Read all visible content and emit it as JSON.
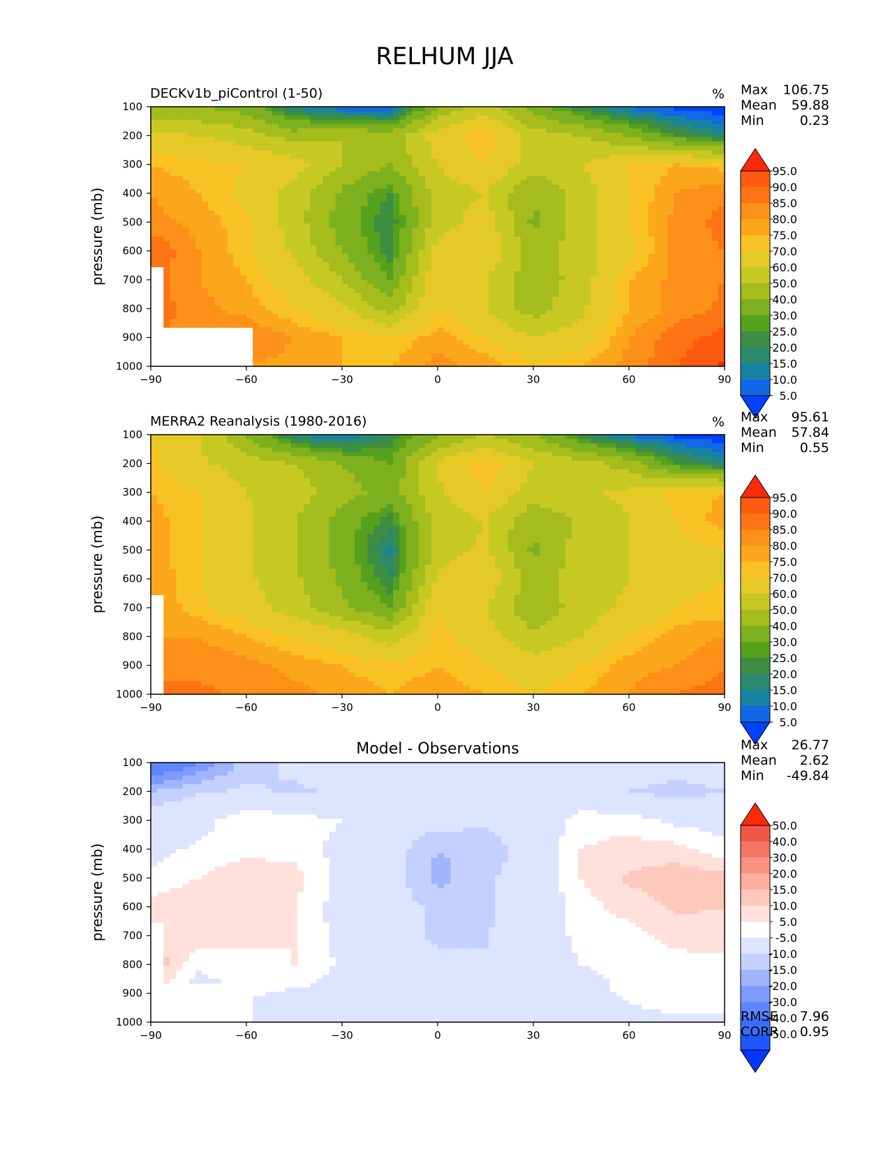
{
  "figure_title": "RELHUM JJA",
  "colors": {
    "abs_levels": [
      "#0042ff",
      "#1268e6",
      "#1783a2",
      "#2b8a6d",
      "#3d8d42",
      "#55a11e",
      "#7cb01f",
      "#a4bc1c",
      "#c7c923",
      "#e5c927",
      "#f8c223",
      "#fca71b",
      "#fc9018",
      "#fd7414",
      "#fe5b11",
      "#ff2a0a"
    ],
    "diff_levels": [
      "#0038ff",
      "#1e57ff",
      "#3a6eff",
      "#5d86ff",
      "#7c9bff",
      "#a0b4ff",
      "#c4d0ff",
      "#dde4ff",
      "#ffffff",
      "#ffe0da",
      "#fec8bc",
      "#fcae9f",
      "#f89281",
      "#f37563",
      "#ee5746",
      "#ff2a0a"
    ]
  },
  "panels": [
    {
      "title_left": "DECKv1b_piControl (1-50)",
      "title_center": "",
      "unit": "%",
      "stats": [
        {
          "label": "Max",
          "value": "106.75"
        },
        {
          "label": "Mean",
          "value": "59.88"
        },
        {
          "label": "Min",
          "value": "0.23"
        }
      ],
      "metrics": [],
      "colorbar_labels": [
        "95.0",
        "90.0",
        "85.0",
        "80.0",
        "75.0",
        "70.0",
        "60.0",
        "50.0",
        "40.0",
        "30.0",
        "25.0",
        "20.0",
        "15.0",
        "10.0",
        "5.0"
      ]
    },
    {
      "title_left": "MERRA2 Reanalysis (1980-2016)",
      "title_center": "",
      "unit": "%",
      "stats": [
        {
          "label": "Max",
          "value": "95.61"
        },
        {
          "label": "Mean",
          "value": "57.84"
        },
        {
          "label": "Min",
          "value": "0.55"
        }
      ],
      "metrics": [],
      "colorbar_labels": [
        "95.0",
        "90.0",
        "85.0",
        "80.0",
        "75.0",
        "70.0",
        "60.0",
        "50.0",
        "40.0",
        "30.0",
        "25.0",
        "20.0",
        "15.0",
        "10.0",
        "5.0"
      ]
    },
    {
      "title_left": "",
      "title_center": "Model - Observations",
      "unit": "",
      "stats": [
        {
          "label": "Max",
          "value": "26.77"
        },
        {
          "label": "Mean",
          "value": "2.62"
        },
        {
          "label": "Min",
          "value": "-49.84"
        }
      ],
      "metrics": [
        {
          "label": "RMSE",
          "value": "7.96"
        },
        {
          "label": "CORR",
          "value": "0.95"
        }
      ],
      "colorbar_labels": [
        "50.0",
        "40.0",
        "30.0",
        "20.0",
        "15.0",
        "10.0",
        "5.0",
        "-5.0",
        "-10.0",
        "-15.0",
        "-20.0",
        "-30.0",
        "-40.0",
        "-50.0"
      ]
    }
  ],
  "chart_data": [
    {
      "type": "heatmap",
      "title": "DECKv1b_piControl (1-50)",
      "ylabel": "pressure (mb)",
      "xlabel": "",
      "x_ticks": [
        "−90",
        "−60",
        "−30",
        "0",
        "30",
        "60",
        "90"
      ],
      "y_ticks": [
        "100",
        "200",
        "300",
        "400",
        "500",
        "600",
        "700",
        "800",
        "900",
        "1000"
      ],
      "xlim": [
        -90,
        90
      ],
      "ylim": [
        1000,
        100
      ],
      "levels": [
        5,
        10,
        15,
        20,
        25,
        30,
        40,
        50,
        60,
        70,
        75,
        80,
        85,
        90,
        95
      ],
      "extend": "both",
      "x": [
        -90,
        -75,
        -60,
        -45,
        -30,
        -15,
        0,
        15,
        30,
        45,
        60,
        75,
        90
      ],
      "y": [
        100,
        200,
        300,
        400,
        500,
        600,
        700,
        800,
        900,
        1000
      ],
      "z": [
        [
          40,
          40,
          35,
          15,
          5,
          3,
          40,
          55,
          35,
          20,
          8,
          3,
          1
        ],
        [
          62,
          60,
          55,
          45,
          50,
          45,
          65,
          75,
          55,
          50,
          40,
          25,
          15
        ],
        [
          75,
          72,
          70,
          65,
          50,
          40,
          60,
          70,
          55,
          60,
          70,
          75,
          73
        ],
        [
          80,
          75,
          68,
          55,
          38,
          25,
          55,
          60,
          40,
          55,
          70,
          80,
          84
        ],
        [
          82,
          78,
          72,
          55,
          35,
          20,
          55,
          65,
          38,
          55,
          70,
          82,
          87
        ],
        [
          90,
          80,
          72,
          58,
          40,
          22,
          65,
          70,
          45,
          55,
          68,
          82,
          85
        ],
        [
          88,
          80,
          75,
          65,
          50,
          30,
          70,
          60,
          42,
          55,
          75,
          82,
          85
        ],
        [
          88,
          82,
          78,
          70,
          62,
          45,
          70,
          60,
          45,
          58,
          75,
          82,
          86
        ],
        [
          null,
          84,
          85,
          80,
          75,
          70,
          78,
          70,
          60,
          65,
          80,
          88,
          92
        ],
        [
          null,
          null,
          80,
          78,
          75,
          75,
          82,
          78,
          72,
          75,
          82,
          90,
          96
        ]
      ],
      "masked_region": "Antarctic terrain below ~650 mb south of about 85S and below ~870 mb south of about 57S"
    },
    {
      "type": "heatmap",
      "title": "MERRA2 Reanalysis (1980-2016)",
      "ylabel": "pressure (mb)",
      "xlabel": "",
      "x_ticks": [
        "−90",
        "−60",
        "−30",
        "0",
        "30",
        "60",
        "90"
      ],
      "y_ticks": [
        "100",
        "200",
        "300",
        "400",
        "500",
        "600",
        "700",
        "800",
        "900",
        "1000"
      ],
      "xlim": [
        -90,
        90
      ],
      "ylim": [
        1000,
        100
      ],
      "levels": [
        5,
        10,
        15,
        20,
        25,
        30,
        40,
        50,
        60,
        70,
        75,
        80,
        85,
        90,
        95
      ],
      "extend": "both",
      "x": [
        -90,
        -75,
        -60,
        -45,
        -30,
        -15,
        0,
        15,
        30,
        45,
        60,
        75,
        90
      ],
      "y": [
        100,
        200,
        300,
        400,
        500,
        600,
        700,
        800,
        900,
        1000
      ],
      "z": [
        [
          70,
          60,
          40,
          15,
          8,
          20,
          38,
          50,
          40,
          20,
          8,
          3,
          1
        ],
        [
          72,
          62,
          55,
          50,
          40,
          30,
          62,
          75,
          60,
          55,
          45,
          25,
          15
        ],
        [
          75,
          70,
          60,
          55,
          45,
          35,
          58,
          70,
          55,
          58,
          62,
          72,
          75
        ],
        [
          78,
          70,
          62,
          50,
          35,
          22,
          55,
          60,
          42,
          52,
          60,
          70,
          78
        ],
        [
          78,
          70,
          62,
          50,
          35,
          14,
          55,
          62,
          38,
          55,
          60,
          68,
          70
        ],
        [
          80,
          70,
          62,
          52,
          38,
          20,
          62,
          68,
          45,
          55,
          60,
          68,
          70
        ],
        [
          80,
          72,
          65,
          55,
          42,
          30,
          70,
          60,
          42,
          55,
          62,
          70,
          72
        ],
        [
          80,
          80,
          75,
          70,
          65,
          55,
          72,
          65,
          52,
          60,
          70,
          78,
          80
        ],
        [
          null,
          84,
          82,
          78,
          75,
          72,
          75,
          70,
          65,
          70,
          78,
          80,
          84
        ],
        [
          null,
          86,
          84,
          82,
          78,
          75,
          78,
          75,
          70,
          75,
          80,
          85,
          88
        ]
      ],
      "masked_region": "Antarctic terrain below ~650 mb south of about 85S"
    },
    {
      "type": "heatmap",
      "title": "Model - Observations",
      "ylabel": "pressure (mb)",
      "xlabel": "",
      "x_ticks": [
        "−90",
        "−60",
        "−30",
        "0",
        "30",
        "60",
        "90"
      ],
      "y_ticks": [
        "100",
        "200",
        "300",
        "400",
        "500",
        "600",
        "700",
        "800",
        "900",
        "1000"
      ],
      "xlim": [
        -90,
        90
      ],
      "ylim": [
        1000,
        100
      ],
      "levels": [
        -50,
        -40,
        -30,
        -20,
        -15,
        -10,
        -5,
        5,
        10,
        15,
        20,
        30,
        40,
        50
      ],
      "extend": "both",
      "x": [
        -90,
        -75,
        -60,
        -45,
        -30,
        -15,
        0,
        15,
        30,
        45,
        60,
        75,
        90
      ],
      "y": [
        100,
        200,
        300,
        400,
        500,
        600,
        700,
        800,
        900,
        1000
      ],
      "z": [
        [
          -30,
          -20,
          -8,
          -3,
          -2,
          -2,
          2,
          5,
          -5,
          -3,
          0,
          0,
          0
        ],
        [
          -10,
          -6,
          -4,
          -6,
          -4,
          -3,
          3,
          -3,
          -3,
          -2,
          -5,
          -8,
          -5
        ],
        [
          0,
          2,
          10,
          8,
          5,
          -2,
          -2,
          -4,
          0,
          8,
          8,
          3,
          3
        ],
        [
          3,
          6,
          8,
          8,
          3,
          -2,
          -10,
          -8,
          -2,
          10,
          12,
          12,
          6
        ],
        [
          6,
          10,
          14,
          12,
          3,
          -2,
          -12,
          -6,
          -2,
          10,
          16,
          18,
          17
        ],
        [
          12,
          15,
          14,
          10,
          2,
          -2,
          -6,
          -6,
          0,
          8,
          12,
          16,
          15
        ],
        [
          14,
          13,
          12,
          10,
          3,
          -2,
          -6,
          -6,
          2,
          6,
          8,
          12,
          13
        ],
        [
          20,
          6,
          8,
          10,
          4,
          0,
          -4,
          -4,
          2,
          5,
          6,
          8,
          8
        ],
        [
          null,
          2,
          6,
          4,
          3,
          2,
          3,
          2,
          2,
          3,
          6,
          8,
          8
        ],
        [
          null,
          null,
          2,
          2,
          2,
          1,
          1,
          1,
          2,
          2,
          3,
          4,
          4
        ]
      ],
      "metrics": {
        "RMSE": 7.96,
        "CORR": 0.95
      },
      "masked_region": "Antarctic terrain below ~650 mb south of about 85S and below ~870 mb south of about 57S"
    }
  ]
}
